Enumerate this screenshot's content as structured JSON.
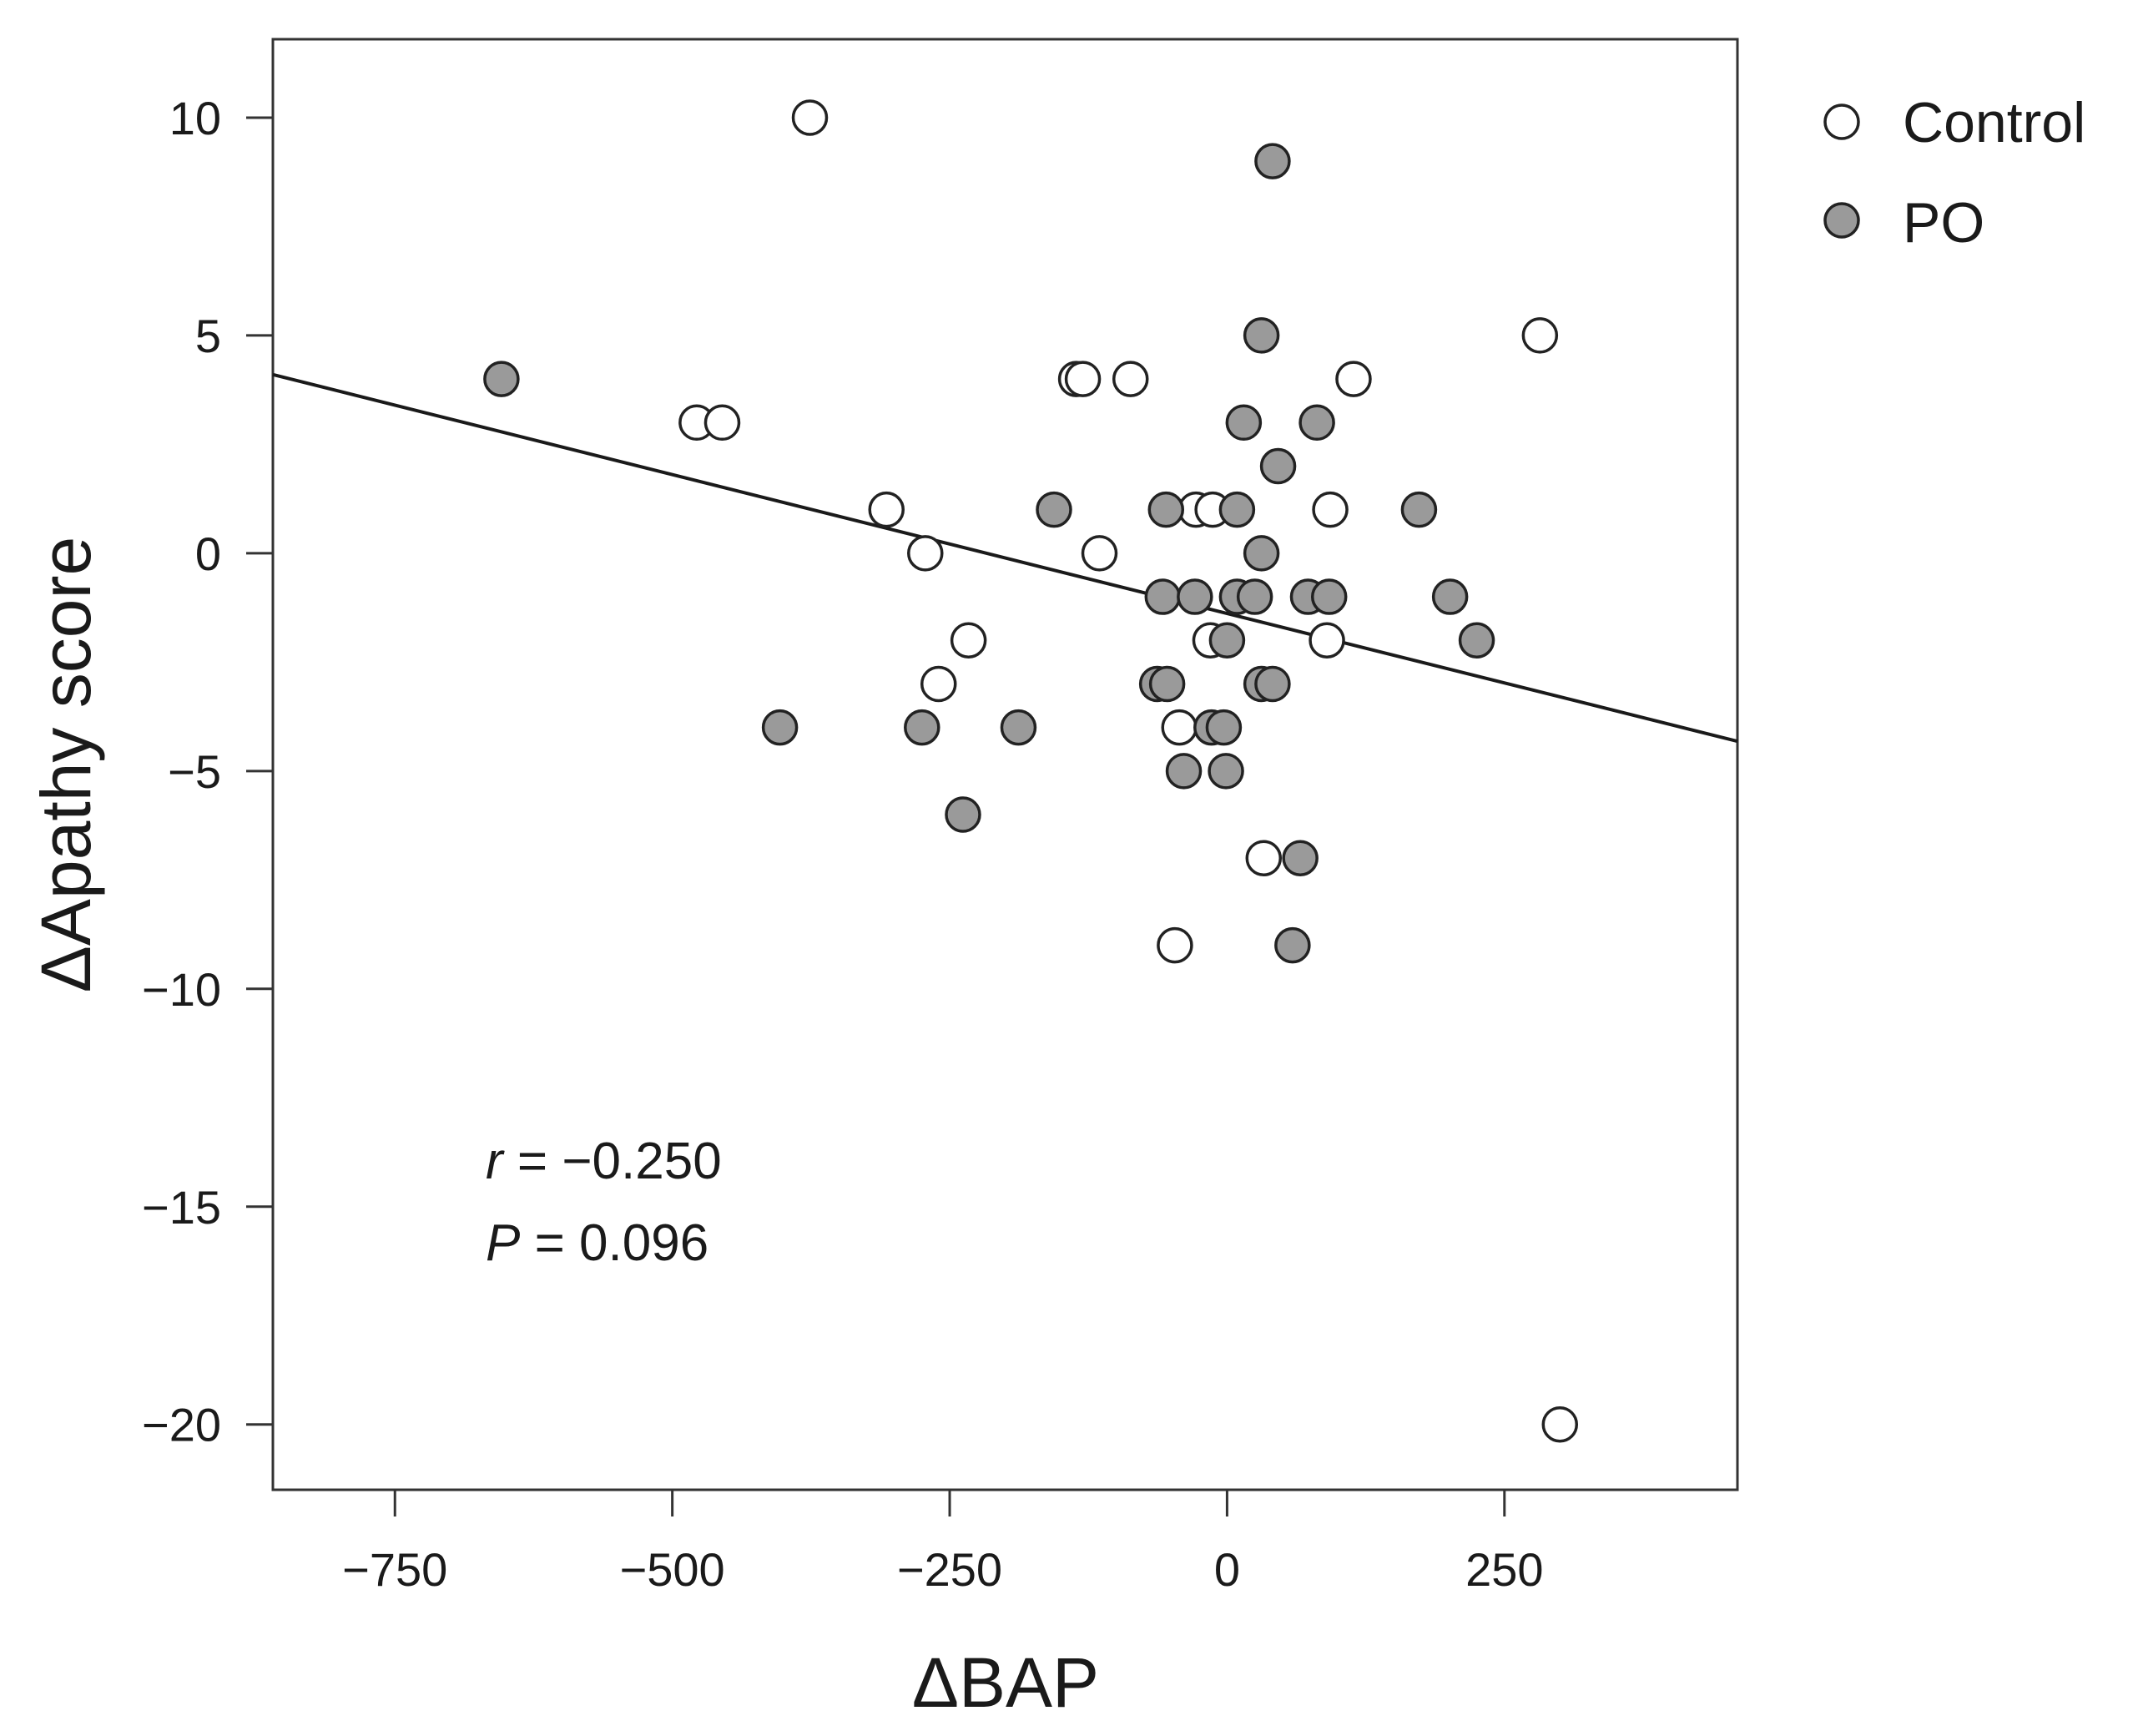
{
  "chart_data": {
    "type": "scatter",
    "title": "",
    "xlabel": "ΔBAP",
    "ylabel": "ΔApathy score",
    "xlim": [
      -860,
      460
    ],
    "ylim": [
      -21.5,
      11.8
    ],
    "xticks": [
      -750,
      -500,
      -250,
      0,
      250
    ],
    "xtick_labels": [
      "−750",
      "−500",
      "−250",
      "0",
      "250"
    ],
    "yticks": [
      10,
      5,
      0,
      -5,
      -10,
      -15,
      -20
    ],
    "ytick_labels": [
      "10",
      "5",
      "0",
      "−5",
      "−10",
      "−15",
      "−20"
    ],
    "grid": false,
    "legend_position": "top-right, outside plot",
    "series": [
      {
        "name": "Control",
        "fill": "#ffffff",
        "stroke": "#222222",
        "points": [
          [
            -376,
            10
          ],
          [
            282,
            5
          ],
          [
            -478,
            3
          ],
          [
            -455,
            3
          ],
          [
            -136,
            4
          ],
          [
            -130,
            4
          ],
          [
            -87,
            4
          ],
          [
            114,
            4
          ],
          [
            -307,
            1
          ],
          [
            -28,
            1
          ],
          [
            -13,
            1
          ],
          [
            93,
            1
          ],
          [
            -272,
            0
          ],
          [
            -115,
            0
          ],
          [
            -233,
            -2
          ],
          [
            -15,
            -2
          ],
          [
            90,
            -2
          ],
          [
            -260,
            -3
          ],
          [
            -43,
            -4
          ],
          [
            33,
            -7
          ],
          [
            -47,
            -9
          ],
          [
            300,
            -20
          ]
        ]
      },
      {
        "name": "PO",
        "fill": "#9a9a9a",
        "stroke": "#222222",
        "points": [
          [
            -654,
            4
          ],
          [
            41,
            9
          ],
          [
            31,
            5
          ],
          [
            15,
            3
          ],
          [
            81,
            3
          ],
          [
            46,
            2
          ],
          [
            -156,
            1
          ],
          [
            -55,
            1
          ],
          [
            9,
            1
          ],
          [
            173,
            1
          ],
          [
            31,
            0
          ],
          [
            -58,
            -1
          ],
          [
            -29,
            -1
          ],
          [
            9,
            -1
          ],
          [
            25,
            -1
          ],
          [
            73,
            -1
          ],
          [
            92,
            -1
          ],
          [
            201,
            -1
          ],
          [
            0,
            -2
          ],
          [
            225,
            -2
          ],
          [
            -63,
            -3
          ],
          [
            -54,
            -3
          ],
          [
            31,
            -3
          ],
          [
            41,
            -3
          ],
          [
            -403,
            -4
          ],
          [
            -275,
            -4
          ],
          [
            -188,
            -4
          ],
          [
            -14,
            -4
          ],
          [
            -3,
            -4
          ],
          [
            -39,
            -5
          ],
          [
            -1,
            -5
          ],
          [
            -238,
            -6
          ],
          [
            66,
            -7
          ],
          [
            59,
            -9
          ]
        ]
      }
    ],
    "regression_line": {
      "slope": -0.006377,
      "intercept": -1.383
    },
    "annotations": [
      {
        "label": "r",
        "text": " = −0.250"
      },
      {
        "label": "P",
        "text": " = 0.096"
      }
    ]
  }
}
